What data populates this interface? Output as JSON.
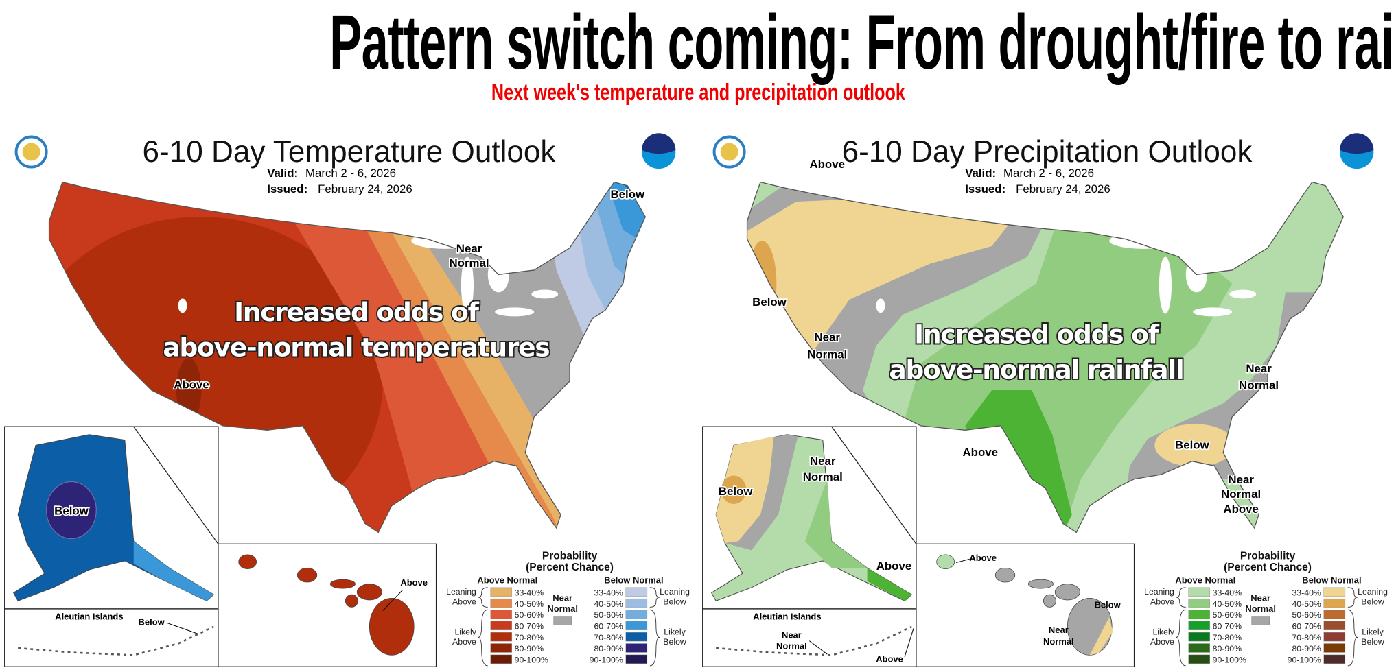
{
  "headline": "Pattern switch coming: From drought/fire to rain?",
  "subheadline": "Next week's temperature and precipitation outlook",
  "panels": [
    {
      "title": "6-10 Day Temperature Outlook",
      "valid_label": "Valid:",
      "valid": "March 2 - 6, 2026",
      "issued_label": "Issued:",
      "issued": "February 24, 2026",
      "overlay": [
        "Increased odds of",
        "above-normal temperatures"
      ],
      "labels": {
        "below_ne": "Below",
        "near_1": "Near",
        "near_2": "Normal",
        "above_sw": "Above",
        "ak_below": "Below",
        "aleutian_title": "Aleutian Islands",
        "aleutian_below": "Below",
        "hi_above": "Above"
      },
      "legend": {
        "title_1": "Probability",
        "title_2": "(Percent Chance)",
        "above_header": "Above Normal",
        "below_header": "Below Normal",
        "near_1": "Near",
        "near_2": "Normal",
        "leaning_above": [
          "Leaning",
          "Above"
        ],
        "likely_above": [
          "Likely",
          "Above"
        ],
        "leaning_below": [
          "Leaning",
          "Below"
        ],
        "likely_below": [
          "Likely",
          "Below"
        ],
        "ranges": [
          "33-40%",
          "40-50%",
          "50-60%",
          "60-70%",
          "70-80%",
          "80-90%",
          "90-100%"
        ],
        "above_colors": [
          "#e8b266",
          "#e58a4a",
          "#dd5836",
          "#c9391c",
          "#b02e0c",
          "#8f2507",
          "#6b1c05"
        ],
        "below_colors": [
          "#bfcbe5",
          "#9dbde0",
          "#72addd",
          "#3a98d8",
          "#0c5ea6",
          "#2d2377",
          "#221a52"
        ],
        "near_color": "#a6a6a6"
      }
    },
    {
      "title": "6-10 Day Precipitation Outlook",
      "valid_label": "Valid:",
      "valid": "March 2 - 6, 2026",
      "issued_label": "Issued:",
      "issued": "February 24, 2026",
      "overlay": [
        "Increased odds of",
        "above-normal rainfall"
      ],
      "labels": {
        "above_nw": "Above",
        "below_w": "Below",
        "near_w_1": "Near",
        "near_w_2": "Normal",
        "near_e_1": "Near",
        "near_e_2": "Normal",
        "below_se": "Below",
        "near_fl_1": "Near",
        "near_fl_2": "Normal",
        "above_fl": "Above",
        "above_tx": "Above",
        "ak_near_1": "Near",
        "ak_near_2": "Normal",
        "ak_below": "Below",
        "ak_above": "Above",
        "aleutian_title": "Aleutian Islands",
        "aleutian_near_1": "Near",
        "aleutian_near_2": "Normal",
        "aleutian_above": "Above",
        "hi_above": "Above",
        "hi_below": "Below",
        "hi_near_1": "Near",
        "hi_near_2": "Normal"
      },
      "legend": {
        "title_1": "Probability",
        "title_2": "(Percent Chance)",
        "above_header": "Above Normal",
        "below_header": "Below Normal",
        "near_1": "Near",
        "near_2": "Normal",
        "leaning_above": [
          "Leaning",
          "Above"
        ],
        "likely_above": [
          "Likely",
          "Above"
        ],
        "leaning_below": [
          "Leaning",
          "Below"
        ],
        "likely_below": [
          "Likely",
          "Below"
        ],
        "ranges": [
          "33-40%",
          "40-50%",
          "50-60%",
          "60-70%",
          "70-80%",
          "80-90%",
          "90-100%"
        ],
        "above_colors": [
          "#b3dcaa",
          "#92cc80",
          "#4cb334",
          "#15a02a",
          "#0a7a1e",
          "#2b6a1a",
          "#264d12"
        ],
        "below_colors": [
          "#f0d492",
          "#dca54e",
          "#bd6a30",
          "#9a4e2e",
          "#8e3d32",
          "#7a3a05",
          "#4e2a2a"
        ],
        "near_color": "#a6a6a6"
      }
    }
  ]
}
